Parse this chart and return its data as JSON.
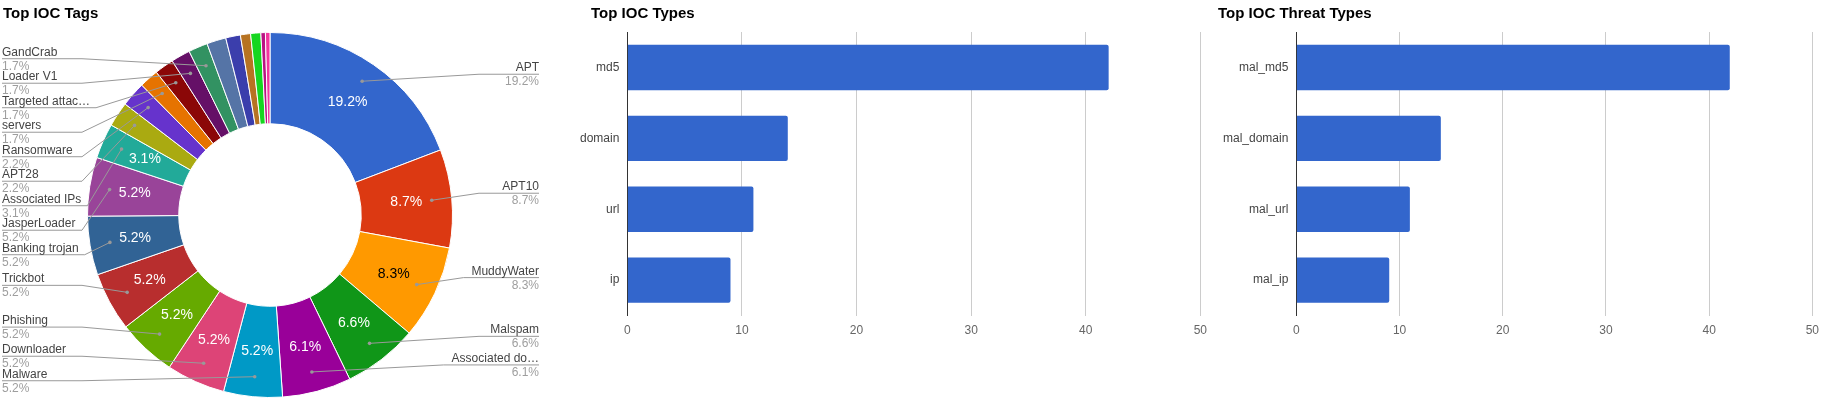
{
  "chart_data": [
    {
      "type": "donut",
      "title": "Top IOC Tags",
      "categories": [
        "APT",
        "APT10",
        "MuddyWater",
        "Malspam",
        "Associated do…",
        "Malware",
        "Downloader",
        "Phishing",
        "Trickbot",
        "Banking trojan",
        "JasperLoader",
        "Associated IPs",
        "APT28",
        "Ransomware",
        "servers",
        "Targeted attac…",
        "Loader V1",
        "GandCrab",
        null,
        null,
        null,
        null,
        null,
        null
      ],
      "values": [
        19.2,
        8.7,
        8.3,
        6.6,
        6.1,
        5.2,
        5.2,
        5.2,
        5.2,
        5.2,
        5.2,
        3.1,
        2.2,
        2.2,
        1.7,
        1.7,
        1.7,
        1.7,
        1.7,
        1.3,
        0.9,
        0.9,
        0.4,
        0.4
      ],
      "colors": [
        "#3366cc",
        "#dc3912",
        "#ff9900",
        "#109618",
        "#990099",
        "#0099c6",
        "#dd4477",
        "#66aa00",
        "#b82e2e",
        "#316395",
        "#994499",
        "#22aa99",
        "#aaaa11",
        "#6633cc",
        "#e67300",
        "#8b0707",
        "#651067",
        "#329262",
        "#5574a6",
        "#3b3eac",
        "#b77322",
        "#16d620",
        "#b91383",
        "#f4359e"
      ],
      "value_labels": [
        "19.2%",
        "8.7%",
        "8.3%",
        "6.6%",
        "6.1%",
        "5.2%",
        "5.2%",
        "5.2%",
        "5.2%",
        "5.2%",
        "5.2%",
        "3.1%",
        "2.2%",
        "2.2%",
        "1.7%",
        "1.7%",
        "1.7%",
        "1.7%",
        null,
        null,
        null,
        null,
        null,
        null
      ]
    },
    {
      "type": "bar",
      "orientation": "horizontal",
      "title": "Top IOC Types",
      "categories": [
        "md5",
        "domain",
        "url",
        "ip"
      ],
      "values": [
        42,
        14,
        11,
        9
      ],
      "color": "#3366cc",
      "xlim": [
        0,
        50
      ],
      "xticks": [
        0,
        10,
        20,
        30,
        40,
        50
      ],
      "grid": "x"
    },
    {
      "type": "bar",
      "orientation": "horizontal",
      "title": "Top IOC Threat Types",
      "categories": [
        "mal_md5",
        "mal_domain",
        "mal_url",
        "mal_ip"
      ],
      "values": [
        42,
        14,
        11,
        9
      ],
      "color": "#3366cc",
      "xlim": [
        0,
        50
      ],
      "xticks": [
        0,
        10,
        20,
        30,
        40,
        50
      ],
      "grid": "x"
    }
  ]
}
